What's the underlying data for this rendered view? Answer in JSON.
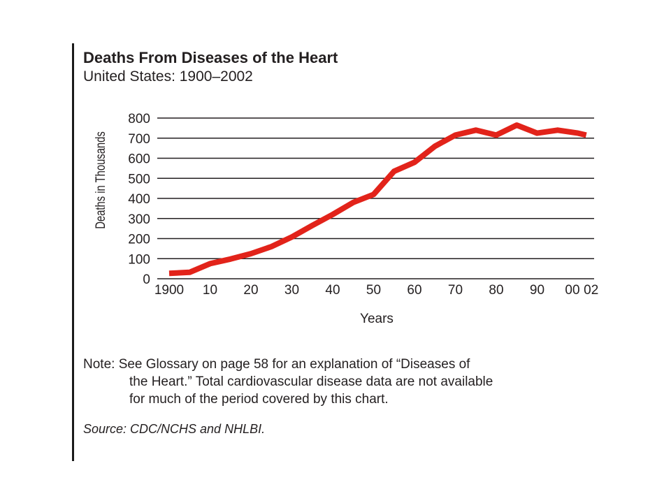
{
  "chart_data": {
    "type": "line",
    "title": "Deaths From Diseases of the Heart",
    "subtitle": "United States: 1900–2002",
    "xlabel": "Years",
    "ylabel": "Deaths in Thousands",
    "ylim": [
      0,
      800
    ],
    "yticks": [
      0,
      100,
      200,
      300,
      400,
      500,
      600,
      700,
      800
    ],
    "xlim": [
      1900,
      2002
    ],
    "xticks": [
      {
        "value": 1900,
        "label": "1900"
      },
      {
        "value": 1910,
        "label": "10"
      },
      {
        "value": 1920,
        "label": "20"
      },
      {
        "value": 1930,
        "label": "30"
      },
      {
        "value": 1940,
        "label": "40"
      },
      {
        "value": 1950,
        "label": "50"
      },
      {
        "value": 1960,
        "label": "60"
      },
      {
        "value": 1970,
        "label": "70"
      },
      {
        "value": 1980,
        "label": "80"
      },
      {
        "value": 1990,
        "label": "90"
      },
      {
        "value": 2000,
        "label": "00"
      },
      {
        "value": 2002,
        "label": "02"
      }
    ],
    "grid": "horizontal",
    "series": [
      {
        "color": "#e2231a",
        "x": [
          1900,
          1905,
          1910,
          1915,
          1920,
          1925,
          1930,
          1935,
          1940,
          1945,
          1950,
          1955,
          1960,
          1965,
          1970,
          1975,
          1980,
          1985,
          1990,
          1995,
          2000,
          2002
        ],
        "y": [
          27,
          32,
          75,
          98,
          125,
          160,
          208,
          265,
          320,
          380,
          420,
          535,
          580,
          660,
          715,
          740,
          715,
          765,
          725,
          740,
          725,
          715
        ]
      }
    ]
  },
  "note": {
    "lines": [
      "Note: See Glossary on page 58 for an explanation of “Diseases of",
      "the Heart.” Total cardiovascular disease data are not available",
      "for much of the period covered by this chart."
    ]
  },
  "source": "Source: CDC/NCHS and NHLBI."
}
